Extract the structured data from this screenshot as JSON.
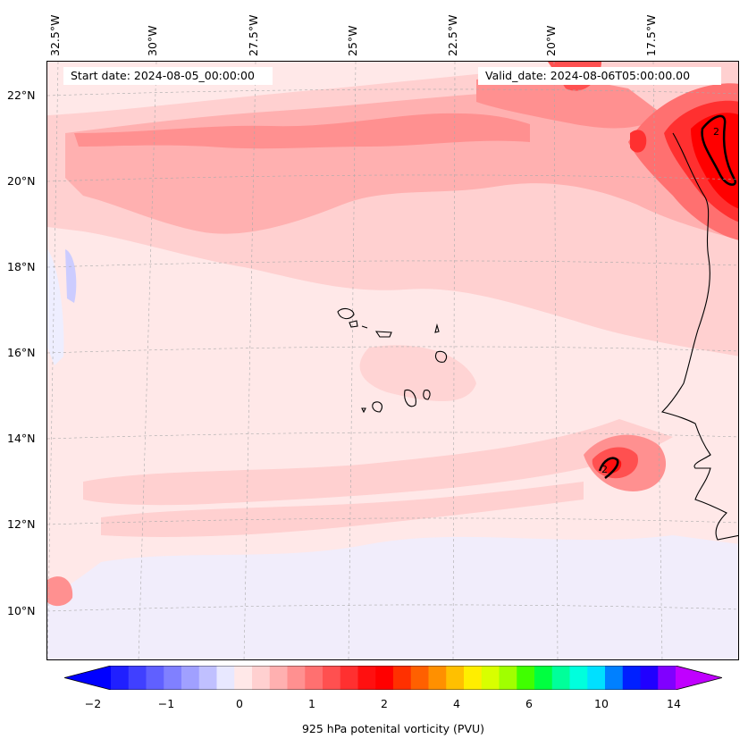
{
  "figure": {
    "start_date": "Start date: 2024-08-05_00:00:00",
    "valid_date": "Valid_date: 2024-08-06T05:00:00.00",
    "colorbar_label": "925 hPa potenital vorticity (PVU)"
  },
  "axes": {
    "longitude_labels": [
      "32.5°W",
      "30°W",
      "27.5°W",
      "25°W",
      "22.5°W",
      "20°W",
      "17.5°W"
    ],
    "latitude_labels": [
      "22°N",
      "20°N",
      "18°N",
      "16°N",
      "14°N",
      "12°N",
      "10°N"
    ],
    "lon_range_deg": [
      -32.8,
      -15.8
    ],
    "lat_range_deg": [
      8.9,
      22.8
    ]
  },
  "colorbar": {
    "tick_labels": [
      "−2",
      "−1",
      "0",
      "1",
      "2",
      "4",
      "6",
      "10",
      "14"
    ],
    "extend": "both",
    "colors": [
      "#0000ff",
      "#2020ff",
      "#4040ff",
      "#6060ff",
      "#8080ff",
      "#a0a0ff",
      "#c0c0ff",
      "#e8e8ff",
      "#ffe8e8",
      "#ffd0d0",
      "#ffb0b0",
      "#ff9090",
      "#ff7070",
      "#ff5050",
      "#ff3030",
      "#ff1010",
      "#ff0000",
      "#ff3000",
      "#ff6000",
      "#ff9000",
      "#ffc000",
      "#ffee00",
      "#d8ff00",
      "#a0ff00",
      "#40ff00",
      "#00ff40",
      "#00ff9a",
      "#00ffdd",
      "#00e0ff",
      "#0080ff",
      "#0020ff",
      "#2000ff",
      "#8000ff",
      "#c000ff"
    ]
  },
  "contour_labels": [
    "2",
    "2"
  ],
  "field": {
    "background_color": "#ffe8e8",
    "features": [
      {
        "name": "northern-pv-band",
        "level": "0.3–1 PVU"
      },
      {
        "name": "cape-verde-maximum-northeast",
        "level": ">2 PVU"
      },
      {
        "name": "coastal-senegal-maximum",
        "level": ">2 PVU"
      },
      {
        "name": "southern-weak-negative-band",
        "level": "−0.2 PVU"
      }
    ]
  }
}
